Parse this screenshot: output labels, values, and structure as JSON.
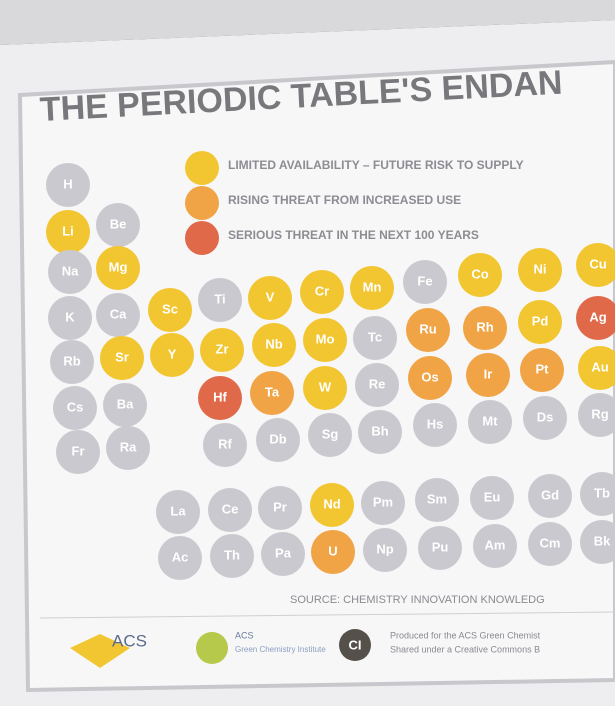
{
  "title": "THE PERIODIC TABLE'S ENDAN",
  "legend": [
    {
      "label": "LIMITED AVAILABILITY – FUTURE RISK TO SUPPLY",
      "color": "#f2c631"
    },
    {
      "label": "RISING THREAT FROM INCREASED USE",
      "color": "#f0a445"
    },
    {
      "label": "SERIOUS THREAT IN THE NEXT 100 YEARS",
      "color": "#e0694a"
    }
  ],
  "unlisted_color": "#c9c9cf",
  "elements": [
    {
      "symbol": "H",
      "risk": null
    },
    {
      "symbol": "Li",
      "risk": 0
    },
    {
      "symbol": "Be",
      "risk": null
    },
    {
      "symbol": "Na",
      "risk": null
    },
    {
      "symbol": "Mg",
      "risk": 0
    },
    {
      "symbol": "K",
      "risk": null
    },
    {
      "symbol": "Ca",
      "risk": null
    },
    {
      "symbol": "Sc",
      "risk": 0
    },
    {
      "symbol": "Ti",
      "risk": null
    },
    {
      "symbol": "V",
      "risk": 0
    },
    {
      "symbol": "Cr",
      "risk": 0
    },
    {
      "symbol": "Mn",
      "risk": 0
    },
    {
      "symbol": "Fe",
      "risk": null
    },
    {
      "symbol": "Co",
      "risk": 0
    },
    {
      "symbol": "Ni",
      "risk": 0
    },
    {
      "symbol": "Cu",
      "risk": 0
    },
    {
      "symbol": "Rb",
      "risk": null
    },
    {
      "symbol": "Sr",
      "risk": 0
    },
    {
      "symbol": "Y",
      "risk": 0
    },
    {
      "symbol": "Zr",
      "risk": 0
    },
    {
      "symbol": "Nb",
      "risk": 0
    },
    {
      "symbol": "Mo",
      "risk": 0
    },
    {
      "symbol": "Tc",
      "risk": null
    },
    {
      "symbol": "Ru",
      "risk": 1
    },
    {
      "symbol": "Rh",
      "risk": 1
    },
    {
      "symbol": "Pd",
      "risk": 0
    },
    {
      "symbol": "Ag",
      "risk": 2
    },
    {
      "symbol": "Cs",
      "risk": null
    },
    {
      "symbol": "Ba",
      "risk": null
    },
    {
      "symbol": "Hf",
      "risk": 2
    },
    {
      "symbol": "Ta",
      "risk": 1
    },
    {
      "symbol": "W",
      "risk": 0
    },
    {
      "symbol": "Re",
      "risk": null
    },
    {
      "symbol": "Os",
      "risk": 1
    },
    {
      "symbol": "Ir",
      "risk": 1
    },
    {
      "symbol": "Pt",
      "risk": 1
    },
    {
      "symbol": "Au",
      "risk": 0
    },
    {
      "symbol": "Fr",
      "risk": null
    },
    {
      "symbol": "Ra",
      "risk": null
    },
    {
      "symbol": "Rf",
      "risk": null
    },
    {
      "symbol": "Db",
      "risk": null
    },
    {
      "symbol": "Sg",
      "risk": null
    },
    {
      "symbol": "Bh",
      "risk": null
    },
    {
      "symbol": "Hs",
      "risk": null
    },
    {
      "symbol": "Mt",
      "risk": null
    },
    {
      "symbol": "Ds",
      "risk": null
    },
    {
      "symbol": "Rg",
      "risk": null
    },
    {
      "symbol": "La",
      "risk": null
    },
    {
      "symbol": "Ce",
      "risk": null
    },
    {
      "symbol": "Pr",
      "risk": null
    },
    {
      "symbol": "Nd",
      "risk": 0
    },
    {
      "symbol": "Pm",
      "risk": null
    },
    {
      "symbol": "Sm",
      "risk": null
    },
    {
      "symbol": "Eu",
      "risk": null
    },
    {
      "symbol": "Gd",
      "risk": null
    },
    {
      "symbol": "Tb",
      "risk": null
    },
    {
      "symbol": "Ac",
      "risk": null
    },
    {
      "symbol": "Th",
      "risk": null
    },
    {
      "symbol": "Pa",
      "risk": null
    },
    {
      "symbol": "U",
      "risk": 1
    },
    {
      "symbol": "Np",
      "risk": null
    },
    {
      "symbol": "Pu",
      "risk": null
    },
    {
      "symbol": "Am",
      "risk": null
    },
    {
      "symbol": "Cm",
      "risk": null
    },
    {
      "symbol": "Bk",
      "risk": null
    }
  ],
  "source": "SOURCE: CHEMISTRY INNOVATION KNOWLEDG",
  "footer": {
    "acs": "ACS",
    "gci_top": "ACS",
    "gci": "Green Chemistry Institute",
    "ci": "CI",
    "produced": "Produced for the ACS Green Chemist",
    "shared": "Shared under a Creative Commons B"
  }
}
